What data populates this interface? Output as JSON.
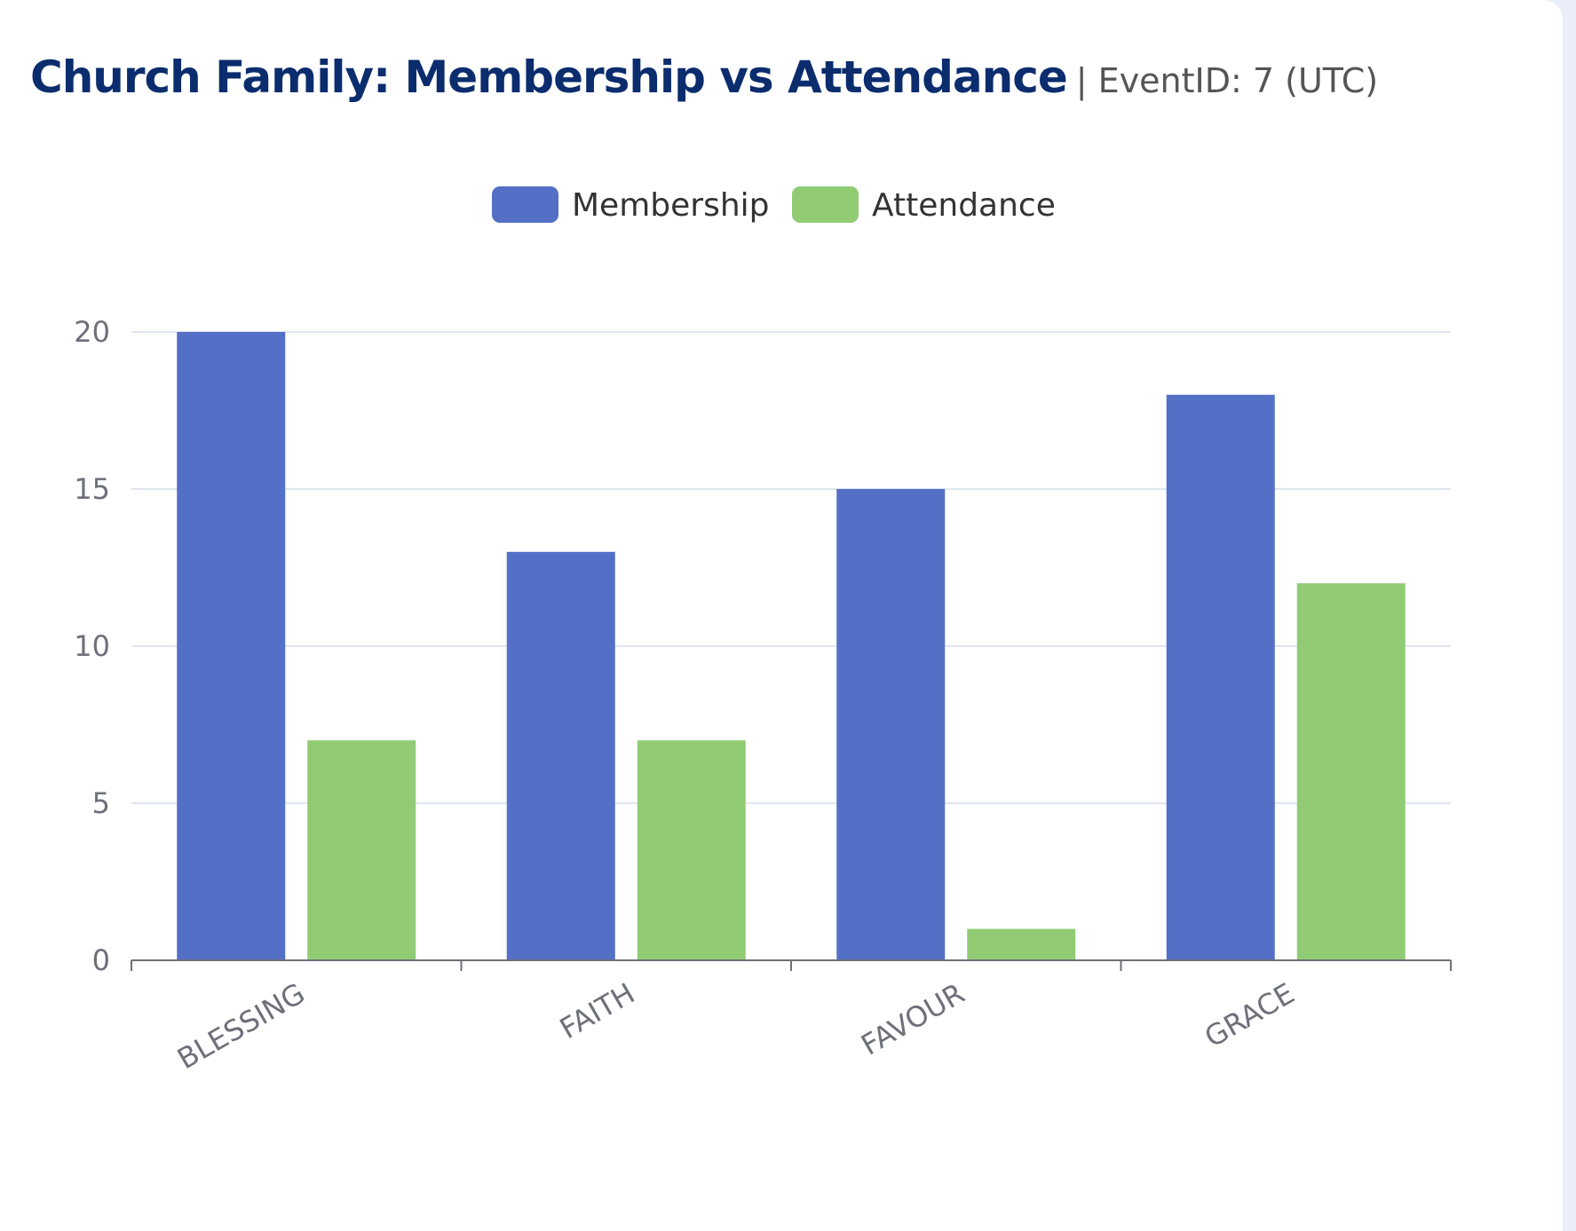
{
  "header": {
    "title": "Church Family: Membership vs Attendance",
    "subtitle": "| EventID: 7 (UTC)"
  },
  "chart_data": {
    "type": "bar",
    "categories": [
      "BLESSING",
      "FAITH",
      "FAVOUR",
      "GRACE"
    ],
    "series": [
      {
        "name": "Membership",
        "values": [
          20,
          13,
          15,
          18
        ],
        "color": "#5470c6"
      },
      {
        "name": "Attendance",
        "values": [
          7,
          7,
          1,
          12
        ],
        "color": "#91cc75"
      }
    ],
    "yticks": [
      "0",
      "5",
      "10",
      "15",
      "20"
    ],
    "ylim": [
      0,
      20
    ],
    "grid": true,
    "legend": "top-center",
    "xlabel": "",
    "ylabel": ""
  }
}
